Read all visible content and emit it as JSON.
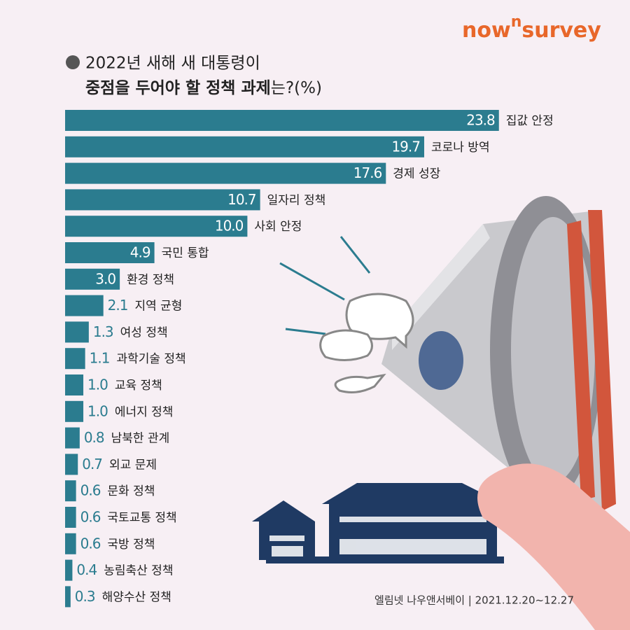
{
  "logo": [
    "now",
    "n",
    "survey"
  ],
  "chart_data": {
    "type": "bar",
    "orientation": "horizontal",
    "title": [
      "2022년 새해 새 대통령이",
      "중점을 두어야 할 정책 과제",
      "는?(%)"
    ],
    "categories": [
      "집값 안정",
      "코로나 방역",
      "경제 성장",
      "일자리 정책",
      "사회 안정",
      "국민 통합",
      "환경 정책",
      "지역 균형",
      "여성 정책",
      "과학기술 정책",
      "교육 정책",
      "에너지 정책",
      "남북한 관계",
      "외교 문제",
      "문화 정책",
      "국토교통 정책",
      "국방 정책",
      "농림축산 정책",
      "해양수산 정책"
    ],
    "values": [
      23.8,
      19.7,
      17.6,
      10.7,
      10.0,
      4.9,
      3.0,
      2.1,
      1.3,
      1.1,
      1.0,
      1.0,
      0.8,
      0.7,
      0.6,
      0.6,
      0.6,
      0.4,
      0.3
    ],
    "value_labels": [
      "23.8",
      "19.7",
      "17.6",
      "10.7",
      "10.0",
      "4.9",
      "3.0",
      "2.1",
      "1.3",
      "1.1",
      "1.0",
      "1.0",
      "0.8",
      "0.7",
      "0.6",
      "0.6",
      "0.6",
      "0.4",
      "0.3"
    ],
    "color": "#2b7c8f",
    "xlim": [
      0,
      25
    ]
  },
  "source": "엘림넷 나우앤서베이 | 2021.12.20~12.27"
}
